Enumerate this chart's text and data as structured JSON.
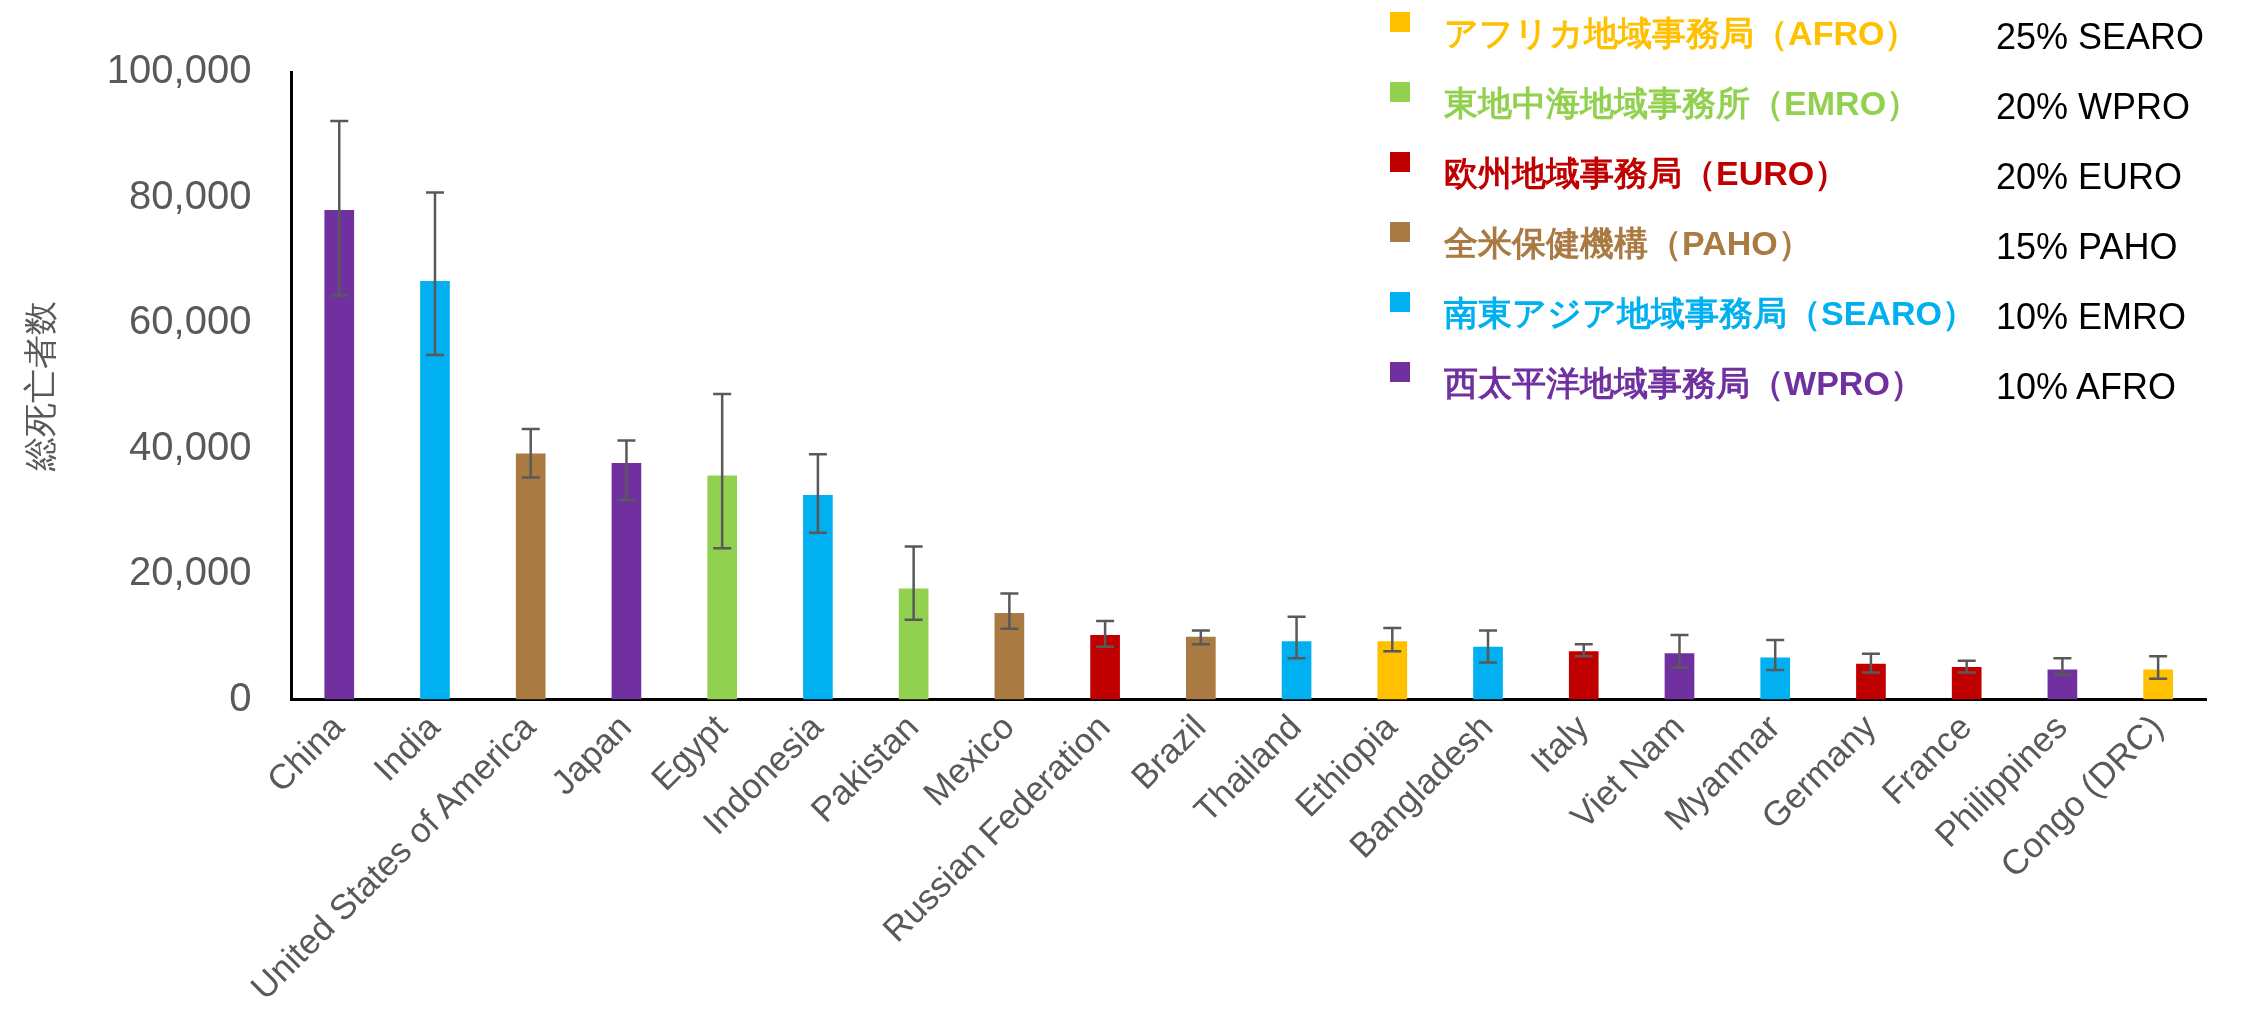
{
  "chart_data": {
    "type": "bar",
    "ylabel": "総死亡者数",
    "categories": [
      "China",
      "India",
      "United States of America",
      "Japan",
      "Egypt",
      "Indonesia",
      "Pakistan",
      "Mexico",
      "Russian Federation",
      "Brazil",
      "Thailand",
      "Ethiopia",
      "Bangladesh",
      "Italy",
      "Viet Nam",
      "Myanmar",
      "Germany",
      "France",
      "Philippines",
      "Congo (DRC)"
    ],
    "series": [
      {
        "name": "アフリカ地域事務局（AFRO）",
        "color": "#ffc000",
        "values": [
          null,
          null,
          null,
          null,
          null,
          null,
          null,
          null,
          null,
          null,
          null,
          9300,
          null,
          null,
          null,
          null,
          null,
          null,
          null,
          4800
        ],
        "errors": [
          null,
          null,
          null,
          null,
          null,
          null,
          null,
          null,
          null,
          null,
          null,
          [
            7700,
            11400
          ],
          null,
          null,
          null,
          null,
          null,
          null,
          null,
          [
            3300,
            6900
          ]
        ]
      },
      {
        "name": "東地中海地域事務所（EMRO）",
        "color": "#92d050",
        "values": [
          null,
          null,
          null,
          null,
          35700,
          null,
          17700,
          null,
          null,
          null,
          null,
          null,
          null,
          null,
          null,
          null,
          null,
          null,
          null,
          null
        ],
        "errors": [
          null,
          null,
          null,
          null,
          [
            24100,
            48700
          ],
          null,
          [
            12700,
            24400
          ],
          null,
          null,
          null,
          null,
          null,
          null,
          null,
          null,
          null,
          null,
          null,
          null,
          null
        ]
      },
      {
        "name": "欧州地域事務局（EURO）",
        "color": "#c00000",
        "values": [
          null,
          null,
          null,
          null,
          null,
          null,
          null,
          null,
          10300,
          null,
          null,
          null,
          null,
          7700,
          null,
          null,
          5700,
          5200,
          null,
          null
        ],
        "errors": [
          null,
          null,
          null,
          null,
          null,
          null,
          null,
          null,
          [
            8400,
            12500
          ],
          null,
          null,
          null,
          null,
          [
            6900,
            8800
          ],
          null,
          null,
          [
            4300,
            7300
          ],
          [
            4300,
            6200
          ],
          null,
          null
        ]
      },
      {
        "name": "全米保健機構（PAHO）",
        "color": "#a97a41",
        "values": [
          null,
          null,
          39200,
          null,
          null,
          null,
          null,
          13800,
          null,
          10000,
          null,
          null,
          null,
          null,
          null,
          null,
          null,
          null,
          null,
          null
        ],
        "errors": [
          null,
          null,
          [
            35400,
            43100
          ],
          null,
          null,
          null,
          null,
          [
            11300,
            16900
          ],
          null,
          [
            8800,
            11000
          ],
          null,
          null,
          null,
          null,
          null,
          null,
          null,
          null,
          null,
          null
        ]
      },
      {
        "name": "南東アジア地域事務局（SEARO）",
        "color": "#00b0f0",
        "values": [
          null,
          66700,
          null,
          null,
          null,
          32600,
          null,
          null,
          null,
          null,
          9300,
          null,
          8400,
          null,
          null,
          6700,
          null,
          null,
          null,
          null
        ],
        "errors": [
          null,
          [
            54900,
            80800
          ],
          null,
          null,
          null,
          [
            26600,
            39100
          ],
          null,
          null,
          null,
          null,
          [
            6600,
            13200
          ],
          null,
          [
            5900,
            11000
          ],
          null,
          null,
          [
            4700,
            9500
          ],
          null,
          null,
          null,
          null
        ]
      },
      {
        "name": "西太平洋地域事務局（WPRO）",
        "color": "#7030a0",
        "values": [
          78000,
          null,
          null,
          37700,
          null,
          null,
          null,
          null,
          null,
          null,
          null,
          null,
          null,
          null,
          7400,
          null,
          null,
          null,
          4800,
          null
        ],
        "errors": [
          [
            64400,
            92200
          ],
          null,
          null,
          [
            31800,
            41300
          ],
          null,
          null,
          null,
          null,
          null,
          null,
          null,
          null,
          null,
          null,
          [
            5100,
            10300
          ],
          null,
          null,
          null,
          [
            4000,
            6600
          ],
          null
        ]
      }
    ],
    "ylim": [
      0,
      100000
    ],
    "yticks": [
      0,
      {
        "value": 20000,
        "label": "20,000"
      },
      {
        "value": 40000,
        "label": "40,000"
      },
      {
        "value": 60000,
        "label": "60,000"
      },
      {
        "value": 80000,
        "label": "80,000"
      },
      {
        "value": 100000,
        "label": "100,000"
      }
    ],
    "grid": false,
    "legend": "top right",
    "annotations": [
      "25% SEARO",
      "20% WPRO",
      "20% EURO",
      "15% PAHO",
      "10% EMRO",
      "10% AFRO"
    ]
  }
}
